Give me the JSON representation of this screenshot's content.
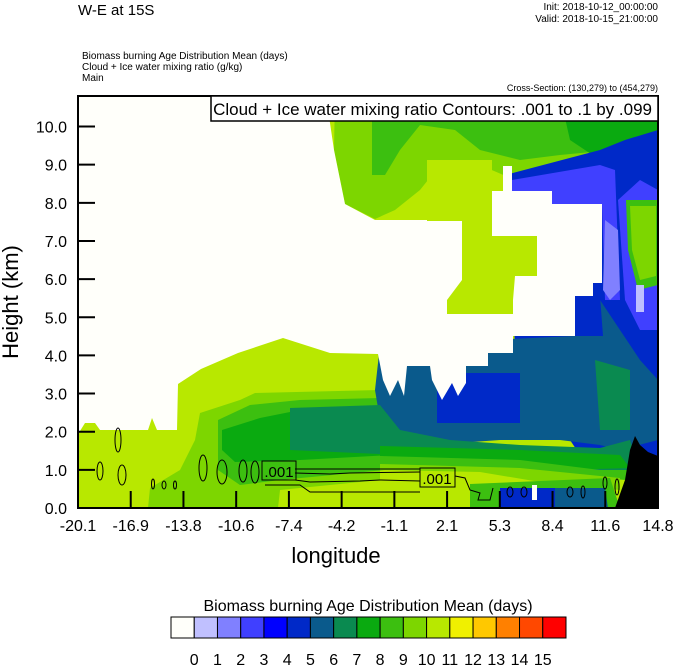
{
  "header": {
    "title": "W-E at 15S",
    "init": "Init: 2018-10-12_00:00:00",
    "valid": "Valid: 2018-10-15_21:00:00",
    "fields": [
      "Biomass burning Age Distribution Mean   (days)",
      "Cloud + Ice water mixing ratio   (g/kg)",
      "Main"
    ],
    "cross_section": "Cross-Section: (130,279) to (454,279)"
  },
  "chart_data": {
    "type": "heatmap",
    "title": "W-E at 15S",
    "xlabel": "longitude",
    "ylabel": "Height (km)",
    "xlim": [
      -20.1,
      14.8
    ],
    "ylim": [
      0.0,
      10.8
    ],
    "x_ticks": [
      "-20.1",
      "-16.9",
      "-13.8",
      "-10.6",
      "-7.4",
      "-4.2",
      "-1.1",
      "2.1",
      "5.3",
      "8.4",
      "11.6",
      "14.8"
    ],
    "y_ticks": [
      "0.0",
      "1.0",
      "2.0",
      "3.0",
      "4.0",
      "5.0",
      "6.0",
      "7.0",
      "8.0",
      "9.0",
      "10.0"
    ],
    "contour_legend": "Cloud + Ice water mixing ratio Contours: .001 to .1 by .099",
    "contour_labels": [
      ".001",
      ".001"
    ],
    "colorbar": {
      "title": "Biomass burning Age Distribution Mean  (days)",
      "levels": [
        "0",
        "1",
        "2",
        "3",
        "4",
        "5",
        "6",
        "7",
        "8",
        "9",
        "10",
        "11",
        "12",
        "13",
        "14",
        "15"
      ],
      "colors": [
        "#fffffa",
        "#c0c0ff",
        "#8080ff",
        "#4040ff",
        "#0000ff",
        "#0029c8",
        "#0a5a8c",
        "#0a8a50",
        "#0aaa10",
        "#3cbf10",
        "#7dd600",
        "#b8e800",
        "#f0f000",
        "#ffc800",
        "#ff8000",
        "#ff4800",
        "#ff0000"
      ]
    },
    "terrain_color": "#000000"
  }
}
